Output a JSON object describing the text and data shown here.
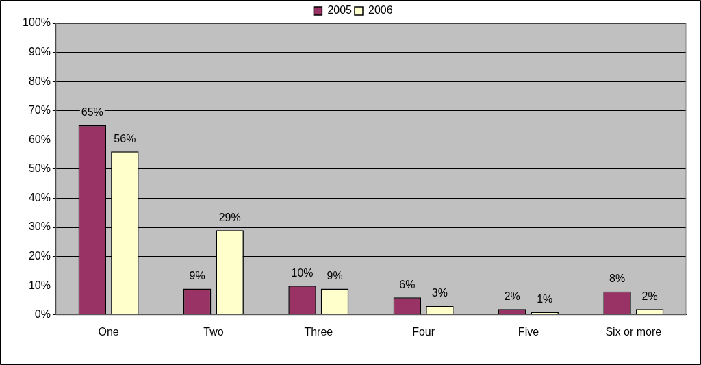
{
  "chart_data": {
    "type": "bar",
    "categories": [
      "One",
      "Two",
      "Three",
      "Four",
      "Five",
      "Six or more"
    ],
    "series": [
      {
        "name": "2005",
        "color": "#993366",
        "values": [
          65,
          9,
          10,
          6,
          2,
          8
        ],
        "value_labels": [
          "65%",
          "9%",
          "10%",
          "6%",
          "2%",
          "8%"
        ]
      },
      {
        "name": "2006",
        "color": "#ffffcc",
        "values": [
          56,
          29,
          9,
          3,
          1,
          2
        ],
        "value_labels": [
          "56%",
          "29%",
          "9%",
          "3%",
          "1%",
          "2%"
        ]
      }
    ],
    "ylim": [
      0,
      100
    ],
    "yticks": [
      {
        "value": 0,
        "label": "0%"
      },
      {
        "value": 10,
        "label": "10%"
      },
      {
        "value": 20,
        "label": "20%"
      },
      {
        "value": 30,
        "label": "30%"
      },
      {
        "value": 40,
        "label": "40%"
      },
      {
        "value": 50,
        "label": "50%"
      },
      {
        "value": 60,
        "label": "60%"
      },
      {
        "value": 70,
        "label": "70%"
      },
      {
        "value": 80,
        "label": "80%"
      },
      {
        "value": 90,
        "label": "90%"
      },
      {
        "value": 100,
        "label": "100%"
      }
    ],
    "grid": "y",
    "legend": "top"
  }
}
